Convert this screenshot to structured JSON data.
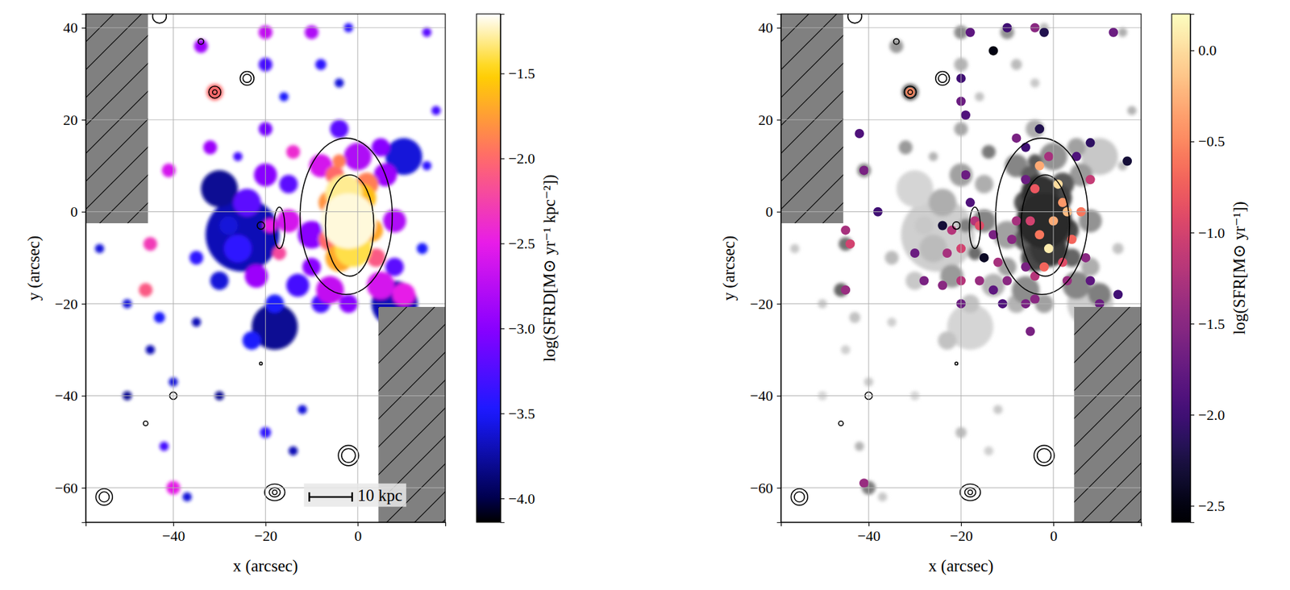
{
  "chart_data": [
    {
      "type": "scatter",
      "x_label": "x (arcsec)",
      "y_label": "y (arcsec)",
      "xlim": [
        -59,
        19
      ],
      "ylim": [
        -67.5,
        43
      ],
      "xticks": [
        {
          "value": -40,
          "label": "−40"
        },
        {
          "value": -20,
          "label": "−20"
        },
        0
      ],
      "yticks": [
        {
          "value": -60,
          "label": "−60"
        },
        {
          "value": -40,
          "label": "−40"
        },
        {
          "value": -20,
          "label": "−20"
        },
        0,
        20,
        40
      ],
      "grid": true,
      "x": [
        -25,
        -18,
        8,
        -30,
        10,
        -50,
        -30,
        -45,
        -14,
        -35,
        -50,
        -40,
        -12,
        -37,
        -56,
        -4,
        -28,
        -30,
        -18,
        -23,
        -43,
        -16,
        14,
        -26,
        -35,
        -2,
        -8,
        -20,
        15,
        -20,
        -26,
        17,
        -42,
        -13,
        -8,
        -24,
        -15,
        -4,
        8,
        15,
        -20,
        -10,
        -20,
        -10,
        -2,
        5,
        -22,
        6,
        -34,
        -32,
        0,
        8,
        -10,
        -6,
        -20,
        -8,
        5,
        -15,
        -41,
        10,
        -19,
        -40,
        -14,
        -45,
        -17,
        -46,
        4,
        -6,
        -5,
        -31,
        2,
        -4,
        -6,
        -4,
        3,
        1,
        -1,
        -3,
        -2
      ],
      "y": [
        -5,
        -25,
        -20,
        5,
        12,
        -40,
        -40,
        -30,
        -52,
        -24,
        -20,
        -37,
        -43,
        -62,
        -8,
        28,
        -3,
        -15,
        -20,
        -28,
        -23,
        25,
        -8,
        -8,
        -10,
        40,
        32,
        -48,
        10,
        32,
        12,
        22,
        -51,
        -16,
        -20,
        2,
        6,
        18,
        -12,
        39,
        18,
        -5,
        8,
        -12,
        -20,
        14,
        -14,
        8,
        36,
        14,
        12,
        -2,
        39,
        -17,
        39,
        10,
        -16,
        -2,
        9,
        -18,
        -3,
        -60,
        13,
        -7,
        -9,
        -17,
        -10,
        -6,
        8,
        26,
        6,
        11,
        2,
        -10,
        -4,
        3,
        -8,
        4,
        -2
      ],
      "sizes": [
        8,
        5,
        5,
        4,
        4,
        1,
        1,
        1,
        1,
        1,
        1,
        1,
        1,
        1,
        1,
        1,
        2,
        2,
        2,
        2,
        1.2,
        1,
        1.2,
        3,
        1.5,
        1,
        1.2,
        1.2,
        1,
        1.5,
        1,
        1,
        1,
        2.5,
        2,
        3,
        2,
        2,
        2,
        1,
        1.5,
        3,
        2.5,
        2,
        2,
        2,
        2.5,
        2.5,
        1.5,
        1.5,
        3,
        2.5,
        1.5,
        3,
        1.5,
        2.5,
        3,
        2.5,
        1.5,
        2.5,
        1.5,
        1.5,
        1.5,
        1.5,
        1.5,
        1.5,
        2,
        2.5,
        2,
        1.8,
        2.5,
        1.5,
        2.5,
        3,
        2.5,
        3,
        4,
        4,
        6
      ],
      "values": [
        -3.7,
        -3.8,
        -3.7,
        -3.8,
        -3.6,
        -3.8,
        -3.8,
        -3.7,
        -3.7,
        -3.7,
        -3.6,
        -3.6,
        -3.6,
        -3.6,
        -3.6,
        -3.6,
        -3.6,
        -3.6,
        -3.5,
        -3.5,
        -3.5,
        -3.5,
        -3.5,
        -3.4,
        -3.4,
        -3.4,
        -3.4,
        -3.4,
        -3.4,
        -3.3,
        -3.3,
        -3.3,
        -3.3,
        -3.3,
        -3.3,
        -3.2,
        -3.2,
        -3.2,
        -3.2,
        -3.2,
        -3.1,
        -3.0,
        -3.0,
        -3.0,
        -3.0,
        -3.0,
        -2.9,
        -2.9,
        -2.9,
        -2.9,
        -2.8,
        -2.8,
        -2.8,
        -2.7,
        -2.7,
        -2.6,
        -2.6,
        -2.6,
        -2.6,
        -2.5,
        -2.5,
        -2.5,
        -2.4,
        -2.3,
        -2.2,
        -2.1,
        -2.1,
        -2.0,
        -2.0,
        -2.0,
        -1.9,
        -1.9,
        -1.8,
        -1.7,
        -1.7,
        -1.6,
        -1.4,
        -1.3,
        -1.2
      ],
      "colorbar": {
        "label": "log(SFRD[M⊙ yr⁻¹ kpc⁻²])",
        "lim": [
          -4.14,
          -1.15
        ],
        "ticks": [
          {
            "value": -4.0,
            "label": "−4.0"
          },
          {
            "value": -3.5,
            "label": "−3.5"
          },
          {
            "value": -3.0,
            "label": "−3.0"
          },
          {
            "value": -2.5,
            "label": "−2.5"
          },
          {
            "value": -2.0,
            "label": "−2.0"
          },
          {
            "value": -1.5,
            "label": "−1.5"
          }
        ]
      },
      "contours": [
        {
          "cx": -2.5,
          "cy": -1,
          "rx": 10,
          "ry": 17
        },
        {
          "cx": -1.75,
          "cy": -3,
          "rx": 5.25,
          "ry": 11
        },
        {
          "cx": -17,
          "cy": -3.5,
          "rx": 1.2,
          "ry": 4.5
        },
        {
          "cx": -31,
          "cy": 26,
          "rx": 1.3,
          "ry": 1.3
        },
        {
          "cx": -31,
          "cy": 26,
          "rx": 0.5,
          "ry": 0.5
        },
        {
          "cx": -24,
          "cy": 29,
          "rx": 1.5,
          "ry": 1.5
        },
        {
          "cx": -24,
          "cy": 29,
          "rx": 0.9,
          "ry": 0.9
        },
        {
          "cx": -34,
          "cy": 37,
          "rx": 0.6,
          "ry": 0.6
        },
        {
          "cx": -55,
          "cy": -62,
          "rx": 1.8,
          "ry": 1.8
        },
        {
          "cx": -55,
          "cy": -62,
          "rx": 1.1,
          "ry": 1.1
        },
        {
          "cx": -2,
          "cy": -53,
          "rx": 2.2,
          "ry": 2.2
        },
        {
          "cx": -2,
          "cy": -53,
          "rx": 1.5,
          "ry": 1.5
        },
        {
          "cx": -18,
          "cy": -61,
          "rx": 2.2,
          "ry": 1.8
        },
        {
          "cx": -18,
          "cy": -61,
          "rx": 1.2,
          "ry": 1
        },
        {
          "cx": -18,
          "cy": -61,
          "rx": 0.5,
          "ry": 0.5
        },
        {
          "cx": -40,
          "cy": -40,
          "rx": 0.8,
          "ry": 0.8
        },
        {
          "cx": -46,
          "cy": -46,
          "rx": 0.5,
          "ry": 0.5
        },
        {
          "cx": -21,
          "cy": -33,
          "rx": 0.3,
          "ry": 0.3
        },
        {
          "cx": -43,
          "cy": 42.5,
          "rx": 1.5,
          "ry": 1.5
        },
        {
          "cx": -21,
          "cy": -3,
          "rx": 0.8,
          "ry": 0.8
        }
      ],
      "masks": [
        {
          "x": [
            -59,
            -45.5
          ],
          "y": [
            -2.5,
            43
          ]
        },
        {
          "x": [
            4.5,
            19
          ],
          "y": [
            -67.5,
            -20.7
          ]
        }
      ],
      "scale_bar": {
        "label": "10 kpc",
        "x": [
          -10.5,
          -1.2
        ],
        "y": -62
      }
    },
    {
      "type": "scatter",
      "x_label": "x (arcsec)",
      "y_label": "y (arcsec)",
      "xlim": [
        -59,
        19
      ],
      "ylim": [
        -67.5,
        43
      ],
      "xticks": [
        {
          "value": -40,
          "label": "−40"
        },
        {
          "value": -20,
          "label": "−20"
        },
        0
      ],
      "yticks": [
        {
          "value": -60,
          "label": "−60"
        },
        {
          "value": -40,
          "label": "−40"
        },
        {
          "value": -20,
          "label": "−20"
        },
        0,
        20,
        40
      ],
      "grid": true,
      "x": [
        -31,
        -3,
        -18,
        -13,
        -20,
        -10,
        -20,
        -19,
        -4,
        -2,
        13,
        -42,
        -41,
        -38,
        -45,
        -44,
        -45,
        -41,
        -24,
        -22,
        -20,
        -23,
        -19,
        -18,
        -17,
        -16,
        -13,
        -16,
        -20,
        -24,
        -20,
        -13,
        -10,
        -6,
        -5,
        -8,
        -9,
        -6,
        -4,
        -5,
        -3,
        -1,
        0,
        2,
        1,
        3,
        -2,
        2,
        4,
        6,
        -4,
        3,
        7,
        8,
        5,
        -1,
        -6,
        -8,
        8,
        -12,
        -11,
        -28,
        -30,
        -15,
        8,
        10,
        14,
        16,
        -4,
        -6,
        -3
      ],
      "y": [
        26,
        10,
        39,
        35,
        29,
        40,
        24,
        21,
        40,
        39,
        39,
        17,
        9,
        0,
        -4,
        -7,
        -17,
        -59,
        -3,
        -4,
        -8,
        -9,
        8,
        2,
        -2,
        -3,
        -5,
        -15,
        -15,
        -16,
        -20,
        -17,
        -15,
        -20,
        -26,
        -2,
        -6,
        -12,
        5,
        -2,
        -5,
        -8,
        -2,
        2,
        6,
        0,
        -12,
        -11,
        -6,
        0,
        -14,
        -15,
        -10,
        7,
        12,
        12,
        14,
        16,
        15,
        -11,
        -20,
        -15,
        -9,
        -10,
        -15,
        -20,
        -18,
        11,
        -19,
        7,
        18
      ],
      "values": [
        -0.5,
        -0.3,
        -1.8,
        -2.5,
        -2.0,
        -2.0,
        -1.7,
        -1.9,
        -1.5,
        -2.2,
        -1.7,
        -1.9,
        -1.6,
        -2.0,
        -1.3,
        -1.0,
        -1.4,
        -1.4,
        -2.3,
        -1.2,
        -1.0,
        -1.3,
        -1.7,
        -1.9,
        -1.2,
        -0.9,
        -1.6,
        -1.4,
        -1.2,
        -1.5,
        -1.7,
        -1.8,
        -1.5,
        -1.6,
        -1.6,
        -1.3,
        -1.5,
        -1.6,
        -0.8,
        -1.0,
        -0.6,
        0.1,
        -0.3,
        -0.4,
        0.0,
        -0.2,
        -0.7,
        -0.9,
        -0.7,
        -0.6,
        -1.2,
        -1.4,
        -1.5,
        -1.1,
        -1.9,
        -1.3,
        -2.0,
        -1.6,
        -2.1,
        -1.3,
        -1.9,
        -1.6,
        -1.7,
        -2.4,
        -1.8,
        -1.7,
        -2.0,
        -2.3,
        -1.5,
        -1.7,
        -2.2
      ],
      "colorbar": {
        "label": "log(SFR[M⊙ yr⁻¹])",
        "lim": [
          -2.59,
          0.2
        ],
        "ticks": [
          {
            "value": -2.5,
            "label": "−2.5"
          },
          {
            "value": -2.0,
            "label": "−2.0"
          },
          {
            "value": -1.5,
            "label": "−1.5"
          },
          {
            "value": -1.0,
            "label": "−1.0"
          },
          {
            "value": -0.5,
            "label": "−0.5"
          },
          {
            "value": 0,
            "label": "0.0"
          }
        ]
      },
      "contours": [
        {
          "cx": -2.5,
          "cy": -1,
          "rx": 10,
          "ry": 17
        },
        {
          "cx": -1.75,
          "cy": -3,
          "rx": 5.25,
          "ry": 11
        },
        {
          "cx": -17,
          "cy": -3.5,
          "rx": 1.2,
          "ry": 4.5
        },
        {
          "cx": -31,
          "cy": 26,
          "rx": 1.3,
          "ry": 1.3
        },
        {
          "cx": -31,
          "cy": 26,
          "rx": 0.5,
          "ry": 0.5
        },
        {
          "cx": -24,
          "cy": 29,
          "rx": 1.5,
          "ry": 1.5
        },
        {
          "cx": -24,
          "cy": 29,
          "rx": 0.9,
          "ry": 0.9
        },
        {
          "cx": -34,
          "cy": 37,
          "rx": 0.6,
          "ry": 0.6
        },
        {
          "cx": -55,
          "cy": -62,
          "rx": 1.8,
          "ry": 1.8
        },
        {
          "cx": -55,
          "cy": -62,
          "rx": 1.1,
          "ry": 1.1
        },
        {
          "cx": -2,
          "cy": -53,
          "rx": 2.2,
          "ry": 2.2
        },
        {
          "cx": -2,
          "cy": -53,
          "rx": 1.5,
          "ry": 1.5
        },
        {
          "cx": -18,
          "cy": -61,
          "rx": 2.2,
          "ry": 1.8
        },
        {
          "cx": -18,
          "cy": -61,
          "rx": 1.2,
          "ry": 1
        },
        {
          "cx": -18,
          "cy": -61,
          "rx": 0.5,
          "ry": 0.5
        },
        {
          "cx": -40,
          "cy": -40,
          "rx": 0.8,
          "ry": 0.8
        },
        {
          "cx": -46,
          "cy": -46,
          "rx": 0.5,
          "ry": 0.5
        },
        {
          "cx": -21,
          "cy": -33,
          "rx": 0.3,
          "ry": 0.3
        },
        {
          "cx": -43,
          "cy": 42.5,
          "rx": 1.5,
          "ry": 1.5
        },
        {
          "cx": -21,
          "cy": -3,
          "rx": 0.8,
          "ry": 0.8
        }
      ],
      "masks": [
        {
          "x": [
            -59,
            -45.5
          ],
          "y": [
            -2.5,
            43
          ]
        },
        {
          "x": [
            4.5,
            19
          ],
          "y": [
            -67.5,
            -20.7
          ]
        }
      ]
    }
  ]
}
